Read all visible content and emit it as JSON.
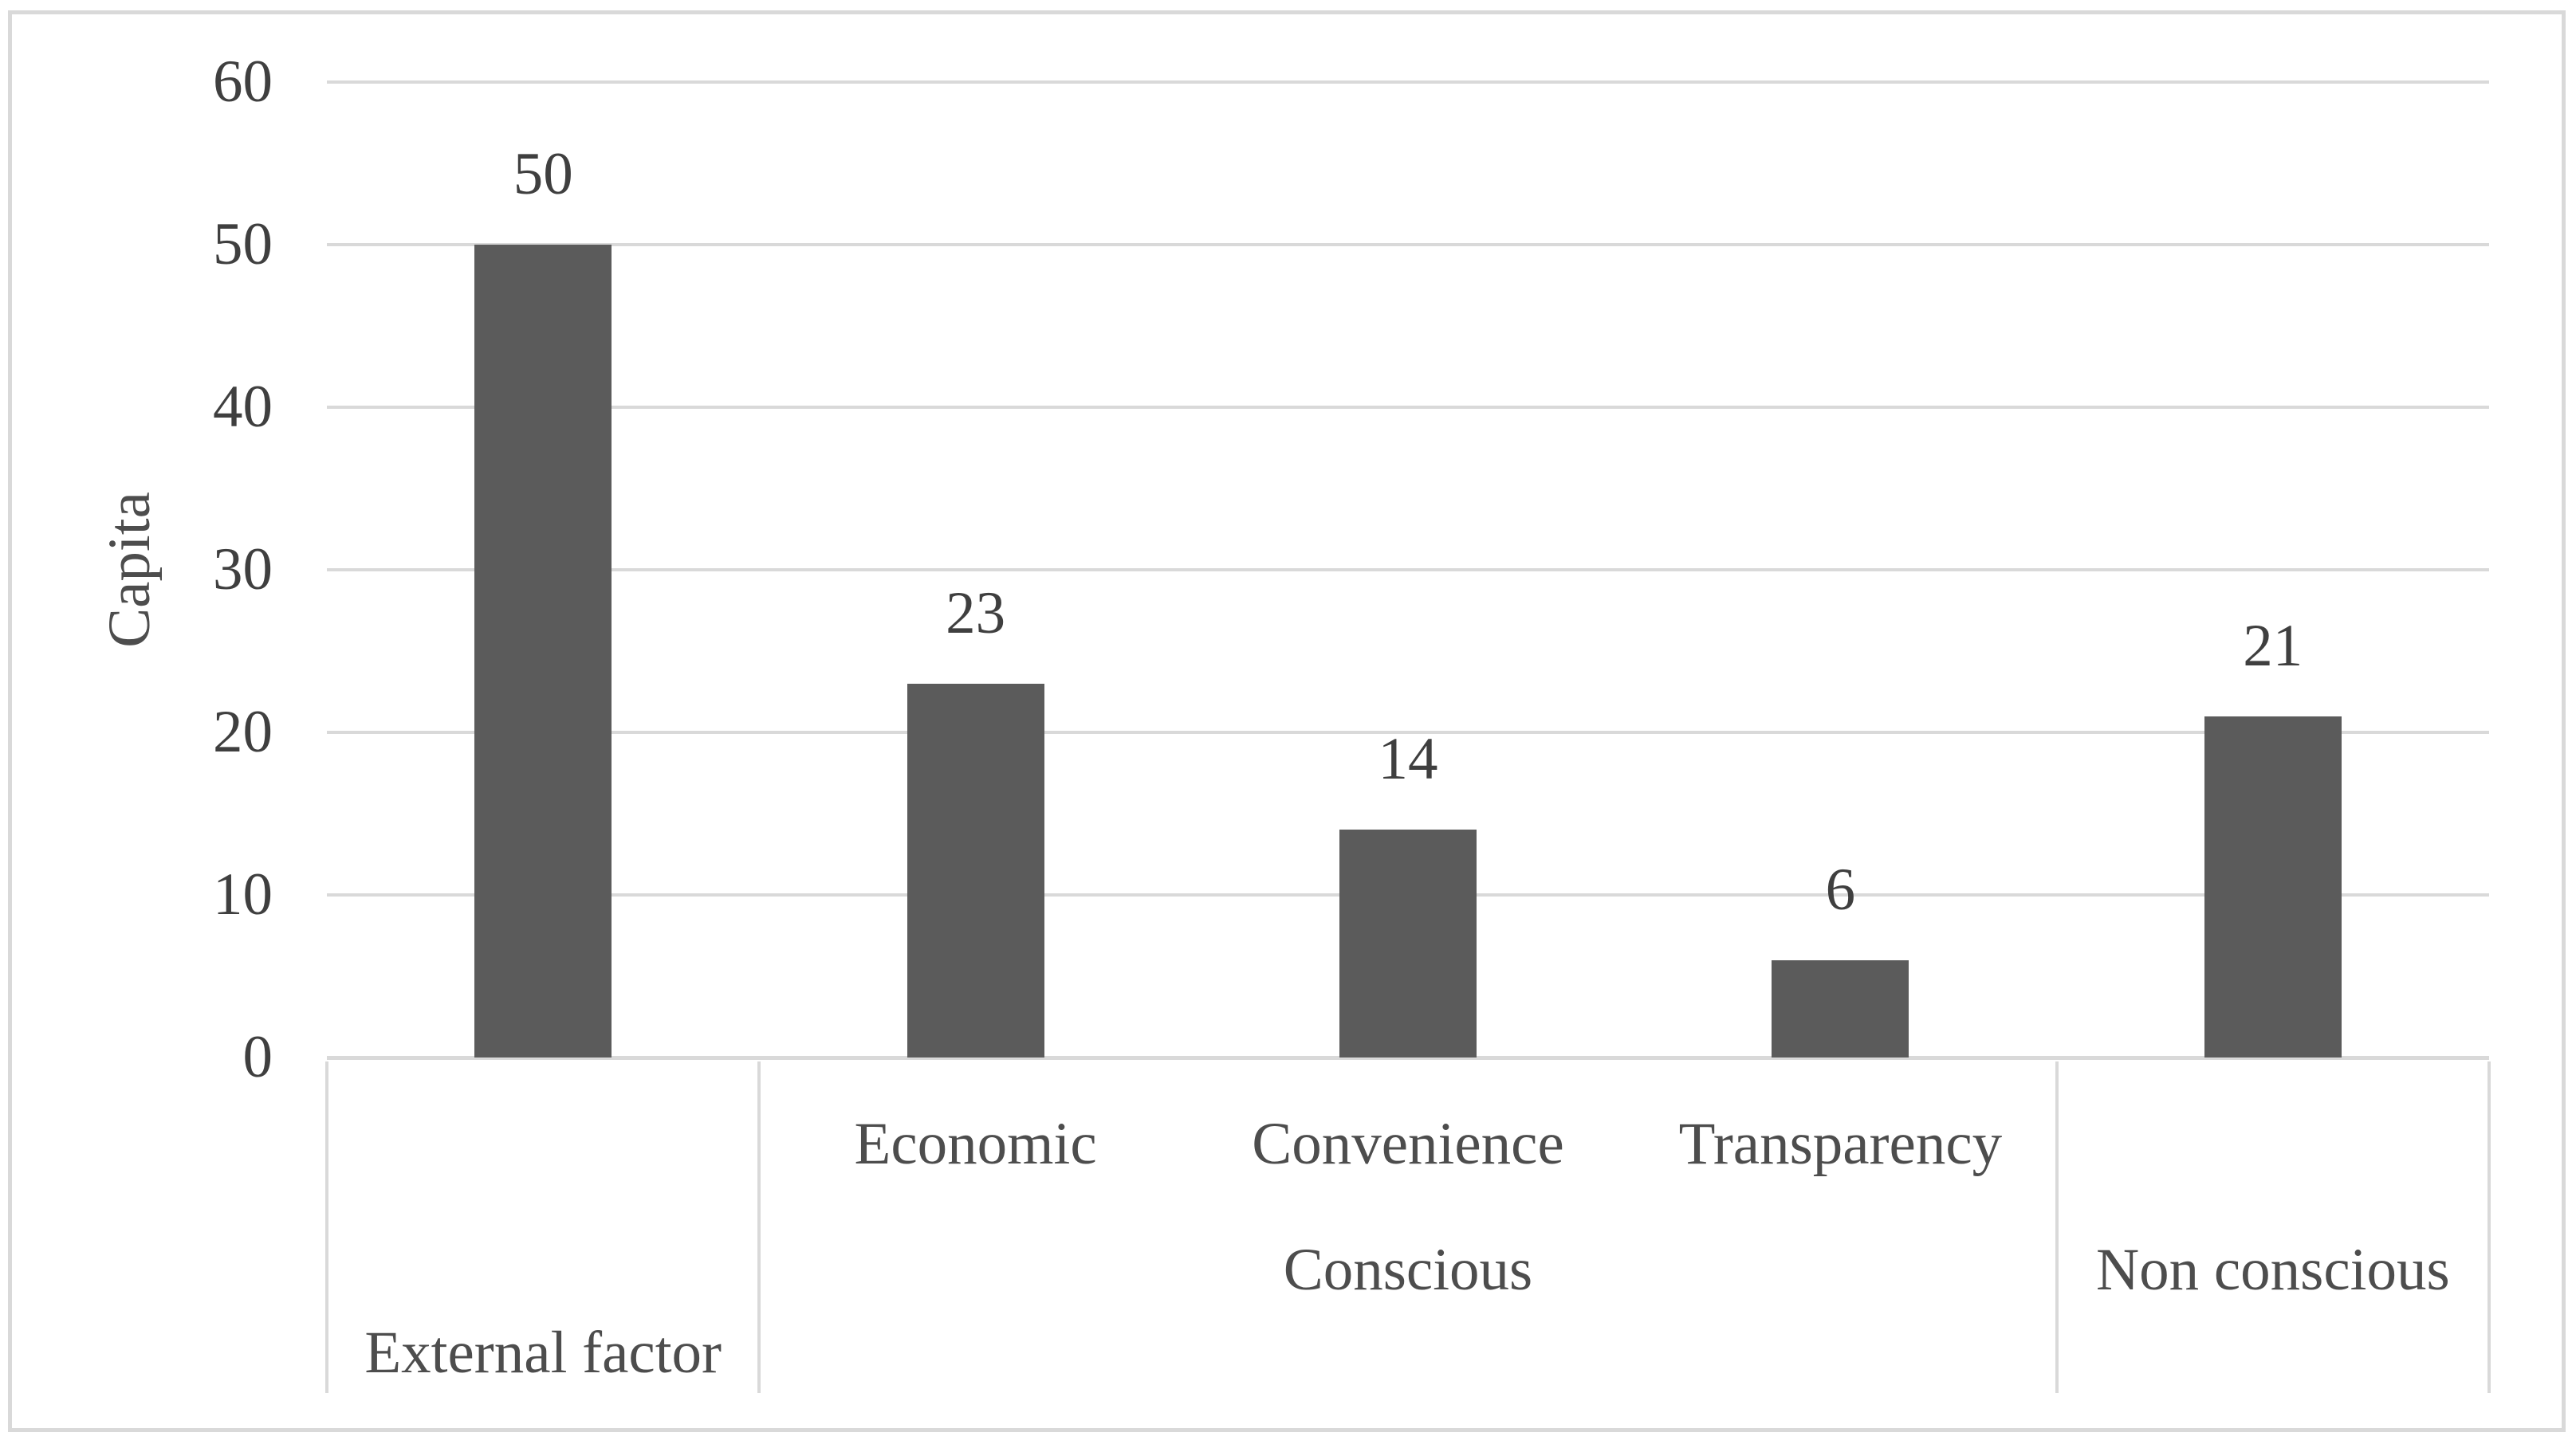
{
  "chart_data": {
    "type": "bar",
    "title": "",
    "xlabel": "",
    "ylabel": "Capita",
    "ylim": [
      0,
      60
    ],
    "ytick_interval": 10,
    "yticks": [
      0,
      10,
      20,
      30,
      40,
      50,
      60
    ],
    "grid": true,
    "legend": false,
    "categories": [
      "External factor",
      "Economic",
      "Convenience",
      "Transparency",
      "Non conscious"
    ],
    "values": [
      50,
      23,
      14,
      6,
      21
    ],
    "data_labels": [
      "50",
      "23",
      "14",
      "6",
      "21"
    ],
    "category_axis": {
      "sub_labels": [
        "",
        "Economic",
        "Convenience",
        "Transparency",
        ""
      ],
      "mid_labels": [
        {
          "label": "",
          "start": 0,
          "end": 1
        },
        {
          "label": "Conscious",
          "start": 1,
          "end": 4
        },
        {
          "label": "Non conscious",
          "start": 4,
          "end": 5
        }
      ],
      "outer_labels": [
        {
          "label": "External factor",
          "start": 0,
          "end": 1
        },
        {
          "label": "",
          "start": 1,
          "end": 4
        },
        {
          "label": "",
          "start": 4,
          "end": 5
        }
      ],
      "group_boundaries": [
        0,
        1,
        4,
        5
      ]
    },
    "colors": {
      "bar": "#5b5b5b",
      "gridline": "#d9d9d9",
      "axis_line": "#d9d9d9",
      "border": "#d9d9d9",
      "value_text": "#3f3f3f",
      "category_text": "#4d4d4d"
    }
  }
}
